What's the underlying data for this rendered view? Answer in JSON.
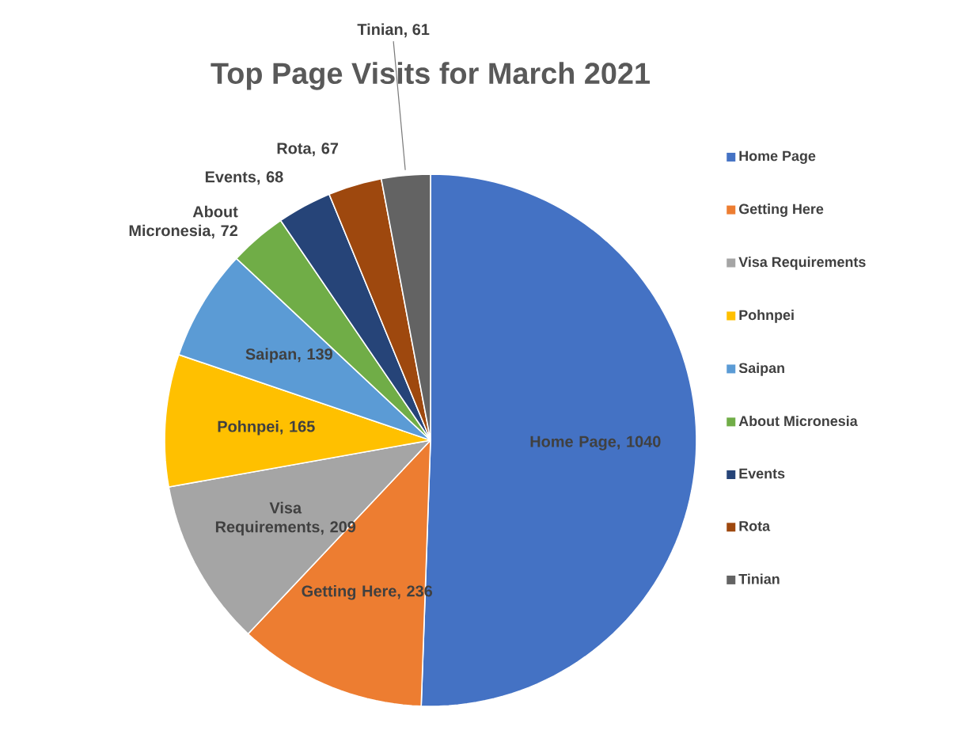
{
  "chart_data": {
    "type": "pie",
    "title": "Top Page Visits for March 2021",
    "categories": [
      "Home Page",
      "Getting Here",
      "Visa Requirements",
      "Pohnpei",
      "Saipan",
      "About Micronesia",
      "Events",
      "Rota",
      "Tinian"
    ],
    "values": [
      1040,
      236,
      209,
      165,
      139,
      72,
      68,
      67,
      61
    ],
    "value_labels": [
      "Home Page, 1040",
      "Getting Here, 236",
      "Visa Requirements, 209",
      "Pohnpei, 165",
      "Saipan, 139",
      "About Micronesia, 72",
      "Events, 68",
      "Rota, 67",
      "Tinian, 61"
    ],
    "colors": [
      "#4472c4",
      "#ed7d31",
      "#a5a5a5",
      "#ffc000",
      "#5b9bd5",
      "#70ad47",
      "#264478",
      "#9e480e",
      "#636363"
    ],
    "legend": "right"
  }
}
